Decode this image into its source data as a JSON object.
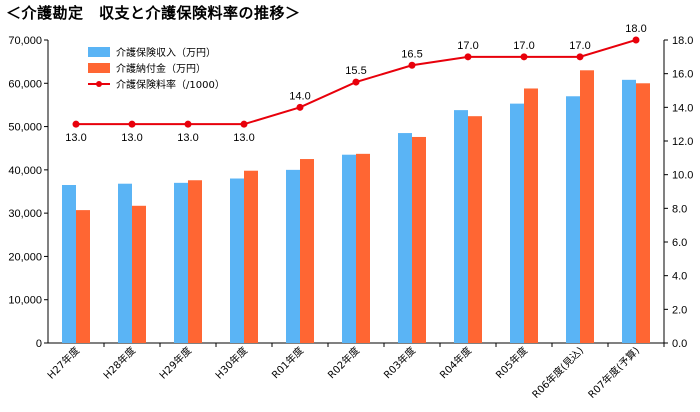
{
  "title": "＜介護勘定　収支と介護保険料率の推移＞",
  "chart_data": {
    "type": "bar",
    "categories": [
      "H27年度",
      "H28年度",
      "H29年度",
      "H30年度",
      "R01年度",
      "R02年度",
      "R03年度",
      "R04年度",
      "R05年度",
      "R06年度(見込)",
      "R07年度(予算)"
    ],
    "series": [
      {
        "name": "介護保険収入（万円）",
        "type": "bar",
        "axis": "left",
        "color": "#5AB4F5",
        "values": [
          36500,
          36800,
          37000,
          38000,
          40000,
          43500,
          48500,
          53800,
          55300,
          57000,
          60800
        ]
      },
      {
        "name": "介護納付金（万円）",
        "type": "bar",
        "axis": "left",
        "color": "#FF6633",
        "values": [
          30700,
          31700,
          37600,
          39800,
          42500,
          43700,
          47600,
          52400,
          58800,
          63000,
          60000
        ]
      },
      {
        "name": "介護保険料率（/1000）",
        "type": "line",
        "axis": "right",
        "color": "#E8000B",
        "values": [
          13.0,
          13.0,
          13.0,
          13.0,
          14.0,
          15.5,
          16.5,
          17.0,
          17.0,
          17.0,
          18.0
        ],
        "labels": [
          "13.0",
          "13.0",
          "13.0",
          "13.0",
          "14.0",
          "15.5",
          "16.5",
          "17.0",
          "17.0",
          "17.0",
          "18.0"
        ]
      }
    ],
    "y_left": {
      "min": 0,
      "max": 70000,
      "step": 10000,
      "tick_labels": [
        "0",
        "10,000",
        "20,000",
        "30,000",
        "40,000",
        "50,000",
        "60,000",
        "70,000"
      ]
    },
    "y_right": {
      "min": 0,
      "max": 18,
      "step": 2,
      "tick_labels": [
        "0.0",
        "2.0",
        "4.0",
        "6.0",
        "8.0",
        "10.0",
        "12.0",
        "14.0",
        "16.0",
        "18.0"
      ]
    },
    "grid": false,
    "legend_position": "top-left"
  }
}
